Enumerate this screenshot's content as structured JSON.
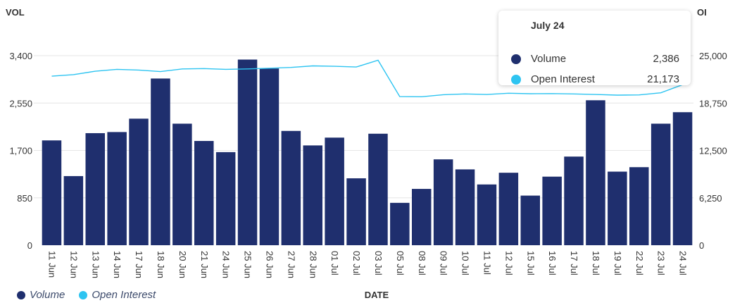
{
  "chart_data": {
    "type": "bar",
    "title": "",
    "xlabel": "DATE",
    "ylabel_left": "VOL",
    "ylabel_right": "OI",
    "categories": [
      "11 Jun",
      "12 Jun",
      "13 Jun",
      "14 Jun",
      "17 Jun",
      "18 Jun",
      "20 Jun",
      "21 Jun",
      "24 Jun",
      "25 Jun",
      "26 Jun",
      "27 Jun",
      "28 Jun",
      "01 Jul",
      "02 Jul",
      "03 Jul",
      "05 Jul",
      "08 Jul",
      "09 Jul",
      "10 Jul",
      "11 Jul",
      "12 Jul",
      "15 Jul",
      "16 Jul",
      "17 Jul",
      "18 Jul",
      "19 Jul",
      "22 Jul",
      "23 Jul",
      "24 Jul"
    ],
    "series": [
      {
        "name": "Volume",
        "type": "bar",
        "axis": "left",
        "color": "#1f2f6e",
        "values": [
          1880,
          1240,
          2010,
          2030,
          2270,
          2990,
          2180,
          1870,
          1670,
          3330,
          3170,
          2050,
          1790,
          1930,
          1200,
          2000,
          760,
          1010,
          1540,
          1360,
          1090,
          1300,
          890,
          1230,
          1590,
          2600,
          1320,
          1400,
          2180,
          2386
        ]
      },
      {
        "name": "Open Interest",
        "type": "line",
        "axis": "right",
        "color": "#2ec4f1",
        "values": [
          22300,
          22500,
          22950,
          23200,
          23100,
          22900,
          23250,
          23300,
          23200,
          23250,
          23350,
          23450,
          23650,
          23600,
          23500,
          24400,
          19600,
          19580,
          19850,
          19950,
          19880,
          20050,
          19980,
          20000,
          19950,
          19880,
          19800,
          19820,
          20100,
          21173
        ]
      }
    ],
    "ylim_left": [
      0,
      3400
    ],
    "ylim_right": [
      0,
      25000
    ],
    "yticks_left": [
      "0",
      "850",
      "1,700",
      "2,550",
      "3,400"
    ],
    "yticks_right": [
      "0",
      "6,250",
      "12,500",
      "18,750",
      "25,000"
    ],
    "grid": true,
    "legend_position": "bottom-left"
  },
  "tooltip": {
    "title": "July 24",
    "rows": [
      {
        "label": "Volume",
        "value": "2,386",
        "color": "#1f2f6e"
      },
      {
        "label": "Open Interest",
        "value": "21,173",
        "color": "#2ec4f1"
      }
    ]
  },
  "legend": [
    {
      "label": "Volume",
      "color": "#1f2f6e"
    },
    {
      "label": "Open Interest",
      "color": "#2ec4f1"
    }
  ]
}
